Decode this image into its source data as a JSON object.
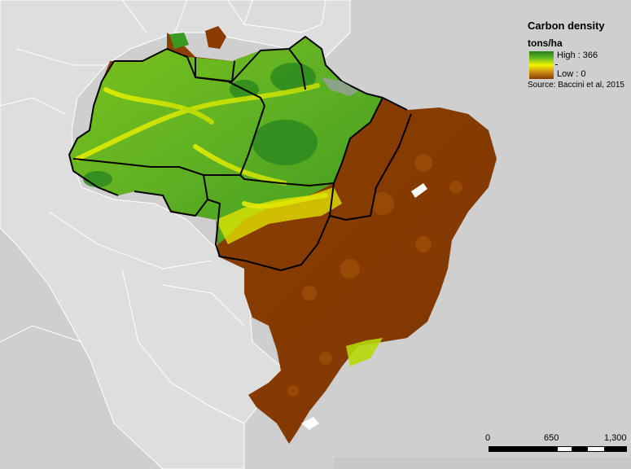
{
  "map": {
    "legend": {
      "title": "Carbon density",
      "units": "tons/ha",
      "high_label": "High : 366",
      "low_label": "Low : 0",
      "source": "Source: Baccini et al, 2015"
    },
    "scale_bar": {
      "labels": [
        "0",
        "650",
        "1,300"
      ]
    },
    "colors": {
      "background": "#cfcfcf",
      "land_other": "#dcdcdc",
      "ocean": "#c9c9c9",
      "high": "#2a7d1d",
      "mid_high": "#57b422",
      "mid": "#f3f500",
      "mid_low": "#c98a16",
      "low": "#8a3d00",
      "boundary": "#000000"
    },
    "layers": [
      "country-outlines",
      "carbon-density-raster",
      "legal-amazon-state-boundaries"
    ]
  }
}
